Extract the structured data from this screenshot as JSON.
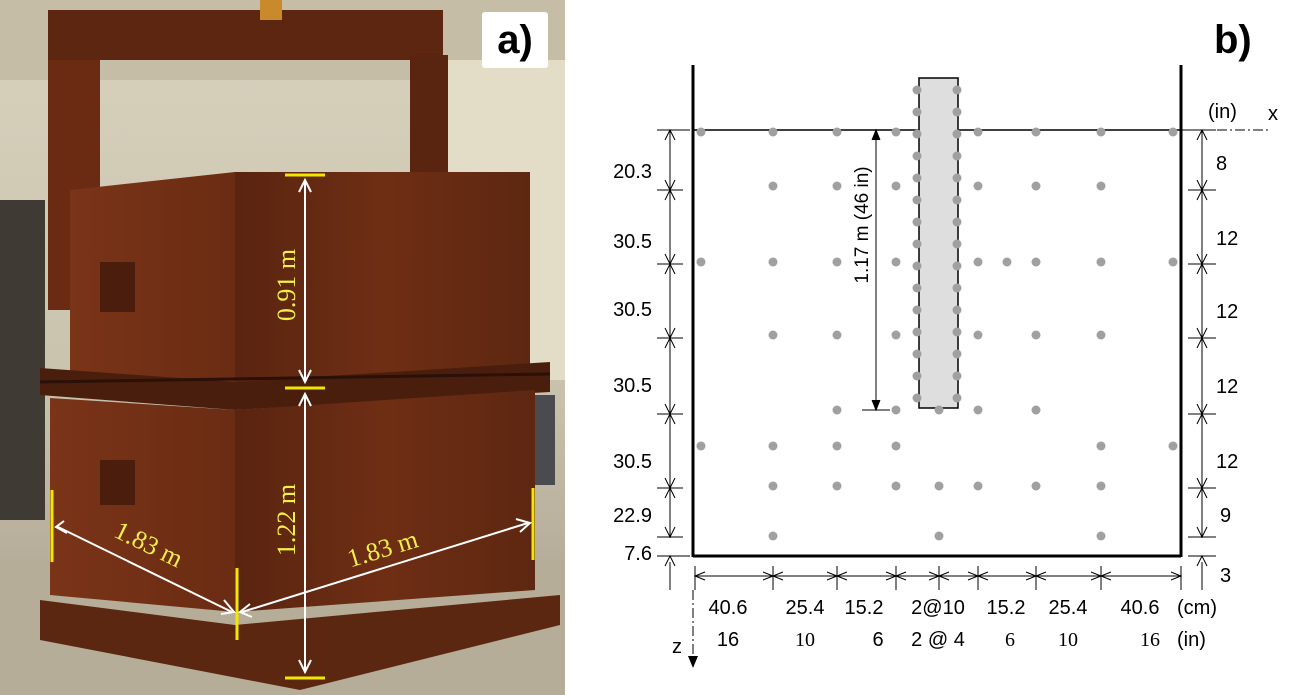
{
  "panel_a": {
    "label": "a)",
    "dims": {
      "upper_height": "0.91 m",
      "lower_height": "1.22 m",
      "width_left": "1.83 m",
      "width_right": "1.83 m"
    },
    "colors": {
      "steel": "#6b2c13",
      "dim_text": "#f2ee4a",
      "dim_line": "#ffffff",
      "marker": "#f3e600"
    }
  },
  "panel_b": {
    "label": "b)",
    "axis_x_label": "x",
    "axis_z_label": "z",
    "unit_in_top": "(in)",
    "unit_cm": "(cm)",
    "unit_in": "(in)",
    "pile_length": "1.17 m (46 in)",
    "left_cm": [
      "20.3",
      "30.5",
      "30.5",
      "30.5",
      "30.5",
      "22.9",
      "7.6"
    ],
    "right_in": [
      "8",
      "12",
      "12",
      "12",
      "12",
      "9",
      "3"
    ],
    "bottom_cm": [
      "40.6",
      "25.4",
      "15.2",
      "2@10",
      "15.2",
      "25.4",
      "40.6"
    ],
    "bottom_in": [
      "16",
      "10",
      "6",
      "2 @ 4",
      "6",
      "10",
      "16"
    ],
    "colors": {
      "dot": "#a0a0a0",
      "pile": "#dedede",
      "line": "#000000"
    }
  }
}
